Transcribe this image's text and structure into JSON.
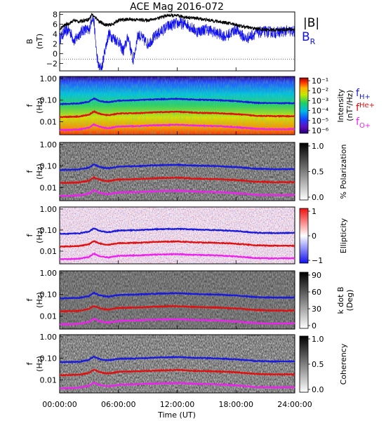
{
  "chart_data": {
    "type": "line",
    "title": "ACE Mag 2016-072",
    "xlabel": "Time (UT)",
    "x_ticks": [
      "00:00:00",
      "06:00:00",
      "12:00:00",
      "18:00:00",
      "24:00:00"
    ],
    "xlim_hours": [
      0,
      24
    ],
    "colors": {
      "B_total": "#000000",
      "B_R": "#1010ee",
      "f_Hplus": "#1a1adc",
      "f_Heplus": "#e01010",
      "f_Oplus": "#ee22ee"
    },
    "panels": [
      {
        "id": "b-field",
        "ylabel_line1": "B",
        "ylabel_line2": "(nT)",
        "ylim": [
          -3.5,
          8.5
        ],
        "y_ticks": [
          "8",
          "6",
          "4",
          "2",
          "0",
          "−2"
        ],
        "y_tick_values": [
          8,
          6,
          4,
          2,
          0,
          -2
        ],
        "legend": [
          "|B|",
          "B_R"
        ],
        "series": [
          {
            "name": "|B|",
            "hours": [
              0,
              0.5,
              1,
              1.5,
              2,
              2.5,
              3,
              3.3,
              3.5,
              3.8,
              4,
              4.5,
              5,
              5.5,
              6,
              7,
              8,
              9,
              10,
              11,
              12,
              13,
              14,
              15,
              16,
              17,
              18,
              19,
              20,
              21,
              22,
              23,
              24
            ],
            "values": [
              5.0,
              5.8,
              6.2,
              6.8,
              6.5,
              6.8,
              7.0,
              8.1,
              7.5,
              7.2,
              6.6,
              6.0,
              5.8,
              6.1,
              6.8,
              7.0,
              6.9,
              6.8,
              7.2,
              7.8,
              7.7,
              7.4,
              7.2,
              6.9,
              6.6,
              6.3,
              5.9,
              5.4,
              5.1,
              4.9,
              4.8,
              4.9,
              4.9
            ]
          },
          {
            "name": "B_R",
            "hours": [
              0,
              0.5,
              1,
              1.5,
              2,
              2.5,
              3,
              3.3,
              3.5,
              3.8,
              4,
              4.3,
              4.6,
              5,
              5.5,
              6,
              6.5,
              7,
              7.5,
              8,
              8.5,
              9,
              10,
              11,
              12,
              13,
              14,
              15,
              16,
              17,
              18,
              19,
              20,
              21,
              22,
              23,
              24
            ],
            "values": [
              3.0,
              4.5,
              4.8,
              2.5,
              4.0,
              5.0,
              4.6,
              7.5,
              6.5,
              -0.5,
              -2.8,
              -3.0,
              0.5,
              4.0,
              3.2,
              2.5,
              0.5,
              3.5,
              -1.5,
              4.0,
              3.0,
              2.0,
              4.0,
              5.5,
              6.2,
              6.0,
              4.5,
              5.0,
              4.2,
              3.5,
              5.0,
              3.0,
              4.2,
              4.5,
              4.3,
              4.6,
              4.5
            ]
          }
        ]
      },
      {
        "id": "intensity",
        "ylabel_line1": "f",
        "ylabel_line2": "(Hz)",
        "y_ticks": [
          "1.00",
          "0.10",
          "0.01"
        ],
        "colorbar_label": "Intensity",
        "colorbar_label2": "(nT²/Hz)",
        "colorbar_ticks": [
          "10⁻¹",
          "10⁻²",
          "10⁻³",
          "10⁻⁴",
          "10⁻⁵",
          "10⁻⁶"
        ],
        "legend": [
          "f_H+",
          "f_He+",
          "f_O+"
        ]
      },
      {
        "id": "polarization",
        "ylabel_line1": "f",
        "ylabel_line2": "(Hz)",
        "y_ticks": [
          "1.00",
          "0.10",
          "0.01"
        ],
        "colorbar_label": "% Polarization",
        "colorbar_ticks": [
          "1.0",
          "0.5",
          "0.0"
        ]
      },
      {
        "id": "ellipticity",
        "ylabel_line1": "f",
        "ylabel_line2": "(Hz)",
        "y_ticks": [
          "1.00",
          "0.10",
          "0.01"
        ],
        "colorbar_label": "Ellipticity",
        "colorbar_ticks": [
          "1",
          "0",
          "−1"
        ]
      },
      {
        "id": "kdotb",
        "ylabel_line1": "f",
        "ylabel_line2": "(Hz)",
        "y_ticks": [
          "1.00",
          "0.10",
          "0.01"
        ],
        "colorbar_label": "k dot B",
        "colorbar_label2": "(Deg)",
        "colorbar_ticks": [
          "90",
          "60",
          "30",
          "0"
        ]
      },
      {
        "id": "coherency",
        "ylabel_line1": "f",
        "ylabel_line2": "(Hz)",
        "y_ticks": [
          "1.00",
          "0.10",
          "0.01"
        ],
        "colorbar_label": "Coherency",
        "colorbar_ticks": [
          "1.0",
          "0.5",
          "0.0"
        ]
      }
    ],
    "gyrofrequency_lines_hz": {
      "hours": [
        0,
        1,
        2,
        3,
        3.5,
        4,
        4.5,
        5,
        6,
        8,
        10,
        12,
        14,
        16,
        18,
        20,
        22,
        24
      ],
      "f_Hplus": [
        0.066,
        0.068,
        0.07,
        0.085,
        0.12,
        0.095,
        0.084,
        0.08,
        0.095,
        0.1,
        0.11,
        0.115,
        0.105,
        0.1,
        0.09,
        0.075,
        0.072,
        0.073
      ],
      "f_Heplus": [
        0.0165,
        0.017,
        0.0175,
        0.021,
        0.03,
        0.024,
        0.021,
        0.02,
        0.024,
        0.025,
        0.0275,
        0.029,
        0.026,
        0.025,
        0.0225,
        0.019,
        0.018,
        0.018
      ],
      "f_Oplus": [
        0.0041,
        0.0042,
        0.0044,
        0.0053,
        0.0075,
        0.006,
        0.0053,
        0.005,
        0.006,
        0.0063,
        0.0069,
        0.0072,
        0.0066,
        0.0063,
        0.0056,
        0.0047,
        0.0045,
        0.0046
      ]
    }
  }
}
